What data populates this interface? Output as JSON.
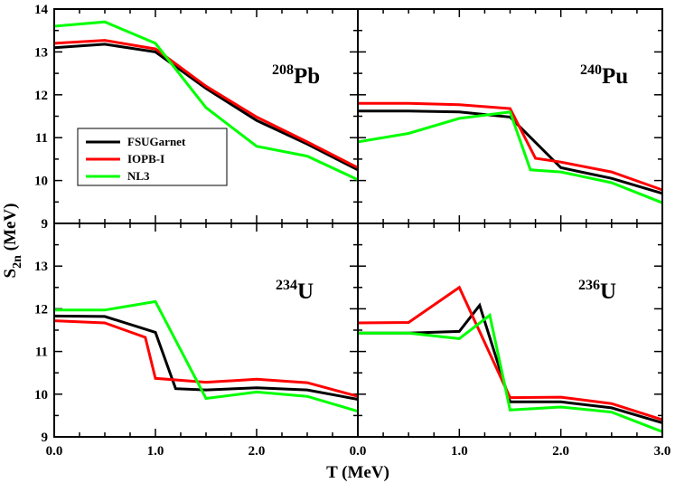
{
  "chart_data": {
    "type": "line",
    "xlabel": "T (MeV)",
    "ylabel_main": "S",
    "ylabel_sub": "2n",
    "ylabel_unit": " (MeV)",
    "x_range": [
      0,
      3
    ],
    "y_range": [
      9,
      14
    ],
    "x_ticks": [
      0,
      1,
      2,
      3
    ],
    "x_tick_labels": [
      "0.0",
      "1.0",
      "2.0",
      "3.0"
    ],
    "y_ticks": [
      9,
      10,
      11,
      12,
      13,
      14
    ],
    "y_tick_labels": [
      "9",
      "10",
      "11",
      "12",
      "13",
      "14"
    ],
    "legend": {
      "panel": "Pb208",
      "entries": [
        {
          "name": "FSUGarnet",
          "color": "#000000"
        },
        {
          "name": "IOPB-I",
          "color": "#ff0000"
        },
        {
          "name": "NL3",
          "color": "#00ff00"
        }
      ]
    },
    "panels": [
      {
        "id": "Pb208",
        "mass": "208",
        "symbol": "Pb",
        "series": [
          {
            "name": "FSUGarnet",
            "color": "#000000",
            "points": [
              [
                0,
                13.1
              ],
              [
                0.5,
                13.18
              ],
              [
                1.0,
                13.0
              ],
              [
                1.5,
                12.15
              ],
              [
                2.0,
                11.4
              ],
              [
                2.5,
                10.85
              ],
              [
                3.0,
                10.25
              ]
            ]
          },
          {
            "name": "IOPB-I",
            "color": "#ff0000",
            "points": [
              [
                0,
                13.2
              ],
              [
                0.5,
                13.27
              ],
              [
                1.0,
                13.07
              ],
              [
                1.5,
                12.2
              ],
              [
                2.0,
                11.48
              ],
              [
                2.5,
                10.9
              ],
              [
                3.0,
                10.3
              ]
            ]
          },
          {
            "name": "NL3",
            "color": "#00ff00",
            "points": [
              [
                0,
                13.6
              ],
              [
                0.5,
                13.7
              ],
              [
                1.0,
                13.2
              ],
              [
                1.5,
                11.7
              ],
              [
                2.0,
                10.8
              ],
              [
                2.5,
                10.57
              ],
              [
                3.0,
                10.02
              ]
            ]
          }
        ]
      },
      {
        "id": "Pu240",
        "mass": "240",
        "symbol": "Pu",
        "series": [
          {
            "name": "FSUGarnet",
            "color": "#000000",
            "points": [
              [
                0,
                11.62
              ],
              [
                0.5,
                11.62
              ],
              [
                1.0,
                11.6
              ],
              [
                1.5,
                11.48
              ],
              [
                2.0,
                10.3
              ],
              [
                2.5,
                10.05
              ],
              [
                3.0,
                9.7
              ]
            ]
          },
          {
            "name": "IOPB-I",
            "color": "#ff0000",
            "points": [
              [
                0,
                11.8
              ],
              [
                0.5,
                11.8
              ],
              [
                1.0,
                11.77
              ],
              [
                1.5,
                11.68
              ],
              [
                1.75,
                10.52
              ],
              [
                2.0,
                10.43
              ],
              [
                2.5,
                10.2
              ],
              [
                3.0,
                9.78
              ]
            ]
          },
          {
            "name": "NL3",
            "color": "#00ff00",
            "points": [
              [
                0,
                10.9
              ],
              [
                0.5,
                11.1
              ],
              [
                1.0,
                11.45
              ],
              [
                1.5,
                11.6
              ],
              [
                1.7,
                10.25
              ],
              [
                2.0,
                10.2
              ],
              [
                2.5,
                9.95
              ],
              [
                3.0,
                9.48
              ]
            ]
          }
        ]
      },
      {
        "id": "U234",
        "mass": "234",
        "symbol": "U",
        "series": [
          {
            "name": "FSUGarnet",
            "color": "#000000",
            "points": [
              [
                0,
                11.83
              ],
              [
                0.5,
                11.82
              ],
              [
                1.0,
                11.45
              ],
              [
                1.2,
                10.13
              ],
              [
                1.5,
                10.1
              ],
              [
                2.0,
                10.15
              ],
              [
                2.5,
                10.1
              ],
              [
                3.0,
                9.88
              ]
            ]
          },
          {
            "name": "IOPB-I",
            "color": "#ff0000",
            "points": [
              [
                0,
                11.72
              ],
              [
                0.5,
                11.67
              ],
              [
                0.9,
                11.33
              ],
              [
                1.0,
                10.37
              ],
              [
                1.5,
                10.28
              ],
              [
                2.0,
                10.35
              ],
              [
                2.5,
                10.27
              ],
              [
                3.0,
                9.95
              ]
            ]
          },
          {
            "name": "NL3",
            "color": "#00ff00",
            "points": [
              [
                0,
                11.97
              ],
              [
                0.5,
                11.97
              ],
              [
                1.0,
                12.17
              ],
              [
                1.5,
                9.9
              ],
              [
                2.0,
                10.05
              ],
              [
                2.5,
                9.95
              ],
              [
                3.0,
                9.6
              ]
            ]
          }
        ]
      },
      {
        "id": "U236",
        "mass": "236",
        "symbol": "U",
        "series": [
          {
            "name": "FSUGarnet",
            "color": "#000000",
            "points": [
              [
                0,
                11.43
              ],
              [
                0.5,
                11.43
              ],
              [
                1.0,
                11.47
              ],
              [
                1.2,
                12.08
              ],
              [
                1.5,
                9.82
              ],
              [
                2.0,
                9.82
              ],
              [
                2.5,
                9.68
              ],
              [
                3.0,
                9.33
              ]
            ]
          },
          {
            "name": "IOPB-I",
            "color": "#ff0000",
            "points": [
              [
                0,
                11.67
              ],
              [
                0.5,
                11.68
              ],
              [
                1.0,
                12.5
              ],
              [
                1.5,
                9.92
              ],
              [
                2.0,
                9.93
              ],
              [
                2.5,
                9.78
              ],
              [
                3.0,
                9.4
              ]
            ]
          },
          {
            "name": "NL3",
            "color": "#00ff00",
            "points": [
              [
                0,
                11.43
              ],
              [
                0.5,
                11.43
              ],
              [
                1.0,
                11.3
              ],
              [
                1.3,
                11.85
              ],
              [
                1.5,
                9.63
              ],
              [
                2.0,
                9.7
              ],
              [
                2.5,
                9.58
              ],
              [
                3.0,
                9.12
              ]
            ]
          }
        ]
      }
    ]
  }
}
